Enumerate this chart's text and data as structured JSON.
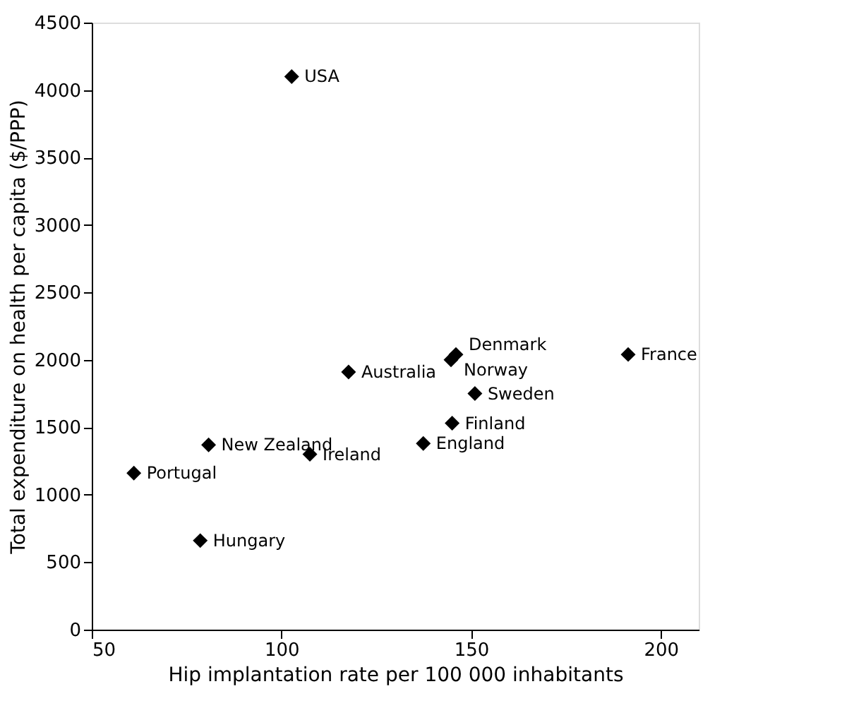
{
  "chart_data": {
    "type": "scatter",
    "xlabel": "Hip implantation rate per 100 000 inhabitants",
    "ylabel": "Total expenditure on health per capita ($/PPP)",
    "x": [
      102.7,
      117.7,
      146,
      144.7,
      151,
      191.4,
      145,
      137.4,
      107.5,
      80.8,
      61.1,
      78.6
    ],
    "series": [
      {
        "color": "#000000",
        "values": [
          4100,
          1910,
          2040,
          2000,
          1750,
          2040,
          1530,
          1380,
          1300,
          1370,
          1160,
          660
        ]
      }
    ],
    "annotations": [
      {
        "text": "USA",
        "x": 102.7,
        "y": 4100
      },
      {
        "text": "Australia",
        "x": 117.7,
        "y": 1910
      },
      {
        "text": "Denmark",
        "x": 146,
        "y": 2040
      },
      {
        "text": "Norway",
        "x": 144.7,
        "y": 2000
      },
      {
        "text": "Sweden",
        "x": 151,
        "y": 1750
      },
      {
        "text": "France",
        "x": 191.4,
        "y": 2040
      },
      {
        "text": "Finland",
        "x": 145,
        "y": 1530
      },
      {
        "text": "England",
        "x": 137.4,
        "y": 1380
      },
      {
        "text": "Ireland",
        "x": 107.5,
        "y": 1300
      },
      {
        "text": "New Zealand",
        "x": 80.8,
        "y": 1370
      },
      {
        "text": "Portugal",
        "x": 61.1,
        "y": 1160
      },
      {
        "text": "Hungary",
        "x": 78.6,
        "y": 660
      }
    ],
    "xlim": [
      50,
      210
    ],
    "xticks": [
      50,
      100,
      150,
      200
    ],
    "ylim": [
      0,
      4500
    ],
    "yticks": [
      0,
      500,
      1000,
      1500,
      2000,
      2500,
      3000,
      3500,
      4000,
      4500
    ],
    "marker": "diamond",
    "grid": false
  }
}
